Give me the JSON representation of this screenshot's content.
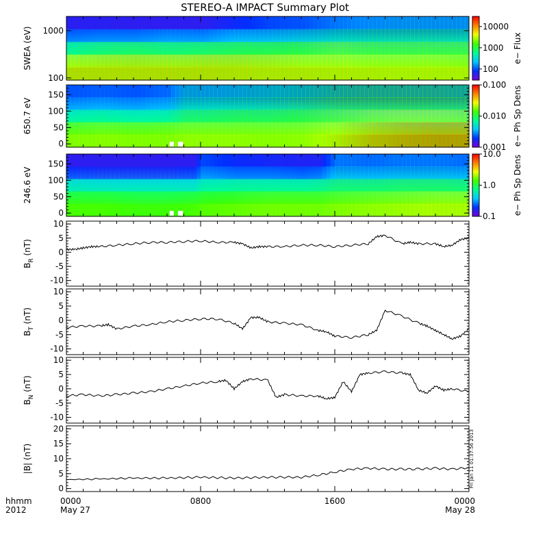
{
  "title": "STEREO-A IMPACT Summary Plot",
  "time_axis": {
    "corner_labels": [
      "hhmm",
      "2012"
    ],
    "ticks": [
      {
        "hours": 0,
        "label": "0000",
        "date": "May 27"
      },
      {
        "hours": 8,
        "label": "0800",
        "date": ""
      },
      {
        "hours": 16,
        "label": "1600",
        "date": ""
      },
      {
        "hours": 24,
        "label": "0000",
        "date": "May 28"
      }
    ],
    "range_hours": [
      0,
      24
    ]
  },
  "timestamp_stamp": "Fri Jan 11 01:37:56 2013",
  "chart_data": [
    {
      "type": "heatmap",
      "name": "swea",
      "ylabel": "SWEA (eV)",
      "yscale": "log",
      "ylim": [
        90,
        2000
      ],
      "yticks": [
        {
          "value": 1000,
          "label": "1000"
        },
        {
          "value": 100,
          "label": "100"
        }
      ],
      "colorbar": {
        "label": "e− Flux",
        "scale": "log",
        "range": [
          30,
          30000
        ],
        "ticks": [
          {
            "value": 10000,
            "label": "10000"
          },
          {
            "value": 1000,
            "label": "1000"
          },
          {
            "value": 100,
            "label": "100"
          }
        ]
      },
      "colorscale": [
        "#7a00d8",
        "#0030ff",
        "#00c8ff",
        "#00ff90",
        "#40ff00",
        "#f0ff00",
        "#ff8000",
        "#ff0000"
      ],
      "colorscale_fill": [
        0.22,
        0.42,
        0.62,
        0.82
      ],
      "layers": [
        {
          "hours": [
            0,
            2,
            4,
            6,
            8,
            10,
            12,
            14,
            16,
            18,
            20,
            22,
            24
          ],
          "fill": [
            0.06,
            0.06,
            0.05,
            0.05,
            0.05,
            0.12,
            0.18,
            0.2,
            0.26,
            0.3,
            0.32,
            0.32,
            0.32
          ]
        },
        {
          "hours": [
            0,
            2,
            4,
            6,
            8,
            10,
            12,
            14,
            16,
            18,
            20,
            22,
            24
          ],
          "fill": [
            0.2,
            0.22,
            0.22,
            0.25,
            0.24,
            0.3,
            0.32,
            0.36,
            0.42,
            0.45,
            0.46,
            0.46,
            0.45
          ]
        },
        {
          "hours": [
            0,
            2,
            4,
            6,
            8,
            10,
            12,
            14,
            16,
            18,
            20,
            22,
            24
          ],
          "fill": [
            0.45,
            0.5,
            0.52,
            0.5,
            0.52,
            0.55,
            0.56,
            0.58,
            0.62,
            0.6,
            0.6,
            0.6,
            0.6
          ]
        },
        {
          "hours": [
            0,
            2,
            4,
            6,
            8,
            10,
            12,
            14,
            16,
            18,
            20,
            22,
            24
          ],
          "fill": [
            0.72,
            0.74,
            0.75,
            0.74,
            0.75,
            0.75,
            0.74,
            0.72,
            0.72,
            0.7,
            0.7,
            0.7,
            0.68
          ]
        },
        {
          "hours": [
            0,
            2,
            4,
            6,
            8,
            10,
            12,
            14,
            16,
            18,
            20,
            22,
            24
          ],
          "fill": [
            0.78,
            0.78,
            0.78,
            0.78,
            0.78,
            0.77,
            0.76,
            0.76,
            0.75,
            0.75,
            0.74,
            0.74,
            0.74
          ]
        }
      ]
    },
    {
      "type": "heatmap",
      "name": "pad650",
      "ylabel": "650.7 eV",
      "yscale": "linear",
      "ylim": [
        -10,
        180
      ],
      "yticks": [
        {
          "value": 150,
          "label": "150"
        },
        {
          "value": 100,
          "label": "100"
        },
        {
          "value": 50,
          "label": "50"
        },
        {
          "value": 0,
          "label": "0"
        }
      ],
      "colorbar": {
        "label": "e− Ph Sp Dens",
        "scale": "log",
        "range": [
          0.001,
          0.1
        ],
        "ticks": [
          {
            "value": 0.1,
            "label": "0.100"
          },
          {
            "value": 0.01,
            "label": "0.010"
          },
          {
            "value": 0.001,
            "label": "0.001"
          }
        ]
      },
      "layers": [
        {
          "hours": [
            0,
            2,
            4,
            6,
            7,
            8,
            10,
            12,
            14,
            16,
            18,
            20,
            22,
            24
          ],
          "fill": [
            0.2,
            0.22,
            0.2,
            0.24,
            0.38,
            0.36,
            0.38,
            0.42,
            0.45,
            0.5,
            0.52,
            0.52,
            0.52,
            0.5
          ]
        },
        {
          "hours": [
            0,
            2,
            4,
            6,
            7,
            8,
            10,
            12,
            14,
            16,
            18,
            20,
            22,
            24
          ],
          "fill": [
            0.26,
            0.28,
            0.26,
            0.3,
            0.42,
            0.42,
            0.44,
            0.46,
            0.5,
            0.55,
            0.56,
            0.57,
            0.56,
            0.55
          ]
        },
        {
          "hours": [
            0,
            2,
            4,
            6,
            7,
            8,
            10,
            12,
            14,
            16,
            18,
            20,
            22,
            24
          ],
          "fill": [
            0.42,
            0.44,
            0.42,
            0.44,
            0.52,
            0.52,
            0.55,
            0.55,
            0.58,
            0.62,
            0.66,
            0.68,
            0.68,
            0.66
          ]
        },
        {
          "hours": [
            0,
            2,
            4,
            6,
            7,
            8,
            10,
            12,
            14,
            16,
            18,
            20,
            22,
            24
          ],
          "fill": [
            0.62,
            0.64,
            0.63,
            0.64,
            0.66,
            0.66,
            0.66,
            0.66,
            0.67,
            0.72,
            0.78,
            0.82,
            0.84,
            0.84
          ]
        },
        {
          "hours": [
            0,
            2,
            4,
            6,
            7,
            8,
            10,
            12,
            14,
            16,
            18,
            20,
            22,
            24
          ],
          "fill": [
            0.66,
            0.67,
            0.66,
            0.66,
            0.68,
            0.68,
            0.68,
            0.67,
            0.68,
            0.75,
            0.84,
            0.88,
            0.9,
            0.9
          ]
        }
      ],
      "data_gaps": [
        {
          "hours": [
            6.15,
            6.4
          ]
        },
        {
          "hours": [
            6.65,
            6.95
          ]
        }
      ]
    },
    {
      "type": "heatmap",
      "name": "pad246",
      "ylabel": "246.6 eV",
      "yscale": "linear",
      "ylim": [
        -10,
        180
      ],
      "yticks": [
        {
          "value": 150,
          "label": "150"
        },
        {
          "value": 100,
          "label": "100"
        },
        {
          "value": 50,
          "label": "50"
        },
        {
          "value": 0,
          "label": "0"
        }
      ],
      "colorbar": {
        "label": "e− Ph Sp Dens",
        "scale": "log",
        "range": [
          0.1,
          10
        ],
        "ticks": [
          {
            "value": 10,
            "label": "10.0"
          },
          {
            "value": 1,
            "label": "1.0"
          },
          {
            "value": 0.1,
            "label": "0.1"
          }
        ]
      },
      "layers": [
        {
          "hours": [
            0,
            2,
            4,
            6,
            7.5,
            8,
            10,
            12,
            14,
            15,
            16,
            18,
            20,
            22,
            24
          ],
          "fill": [
            0.05,
            0.05,
            0.05,
            0.05,
            0.05,
            0.18,
            0.12,
            0.1,
            0.08,
            0.08,
            0.26,
            0.24,
            0.26,
            0.26,
            0.24
          ]
        },
        {
          "hours": [
            0,
            2,
            4,
            6,
            7.5,
            8,
            10,
            12,
            14,
            15,
            16,
            18,
            20,
            22,
            24
          ],
          "fill": [
            0.12,
            0.1,
            0.1,
            0.1,
            0.12,
            0.24,
            0.2,
            0.2,
            0.18,
            0.2,
            0.32,
            0.3,
            0.32,
            0.32,
            0.3
          ]
        },
        {
          "hours": [
            0,
            2,
            4,
            6,
            7.5,
            8,
            10,
            12,
            14,
            15,
            16,
            18,
            20,
            22,
            24
          ],
          "fill": [
            0.38,
            0.36,
            0.36,
            0.36,
            0.36,
            0.42,
            0.44,
            0.44,
            0.44,
            0.46,
            0.5,
            0.5,
            0.52,
            0.52,
            0.5
          ]
        },
        {
          "hours": [
            0,
            2,
            4,
            6,
            7.5,
            8,
            10,
            12,
            14,
            15,
            16,
            18,
            20,
            22,
            24
          ],
          "fill": [
            0.54,
            0.54,
            0.52,
            0.52,
            0.54,
            0.56,
            0.58,
            0.6,
            0.6,
            0.6,
            0.62,
            0.64,
            0.66,
            0.68,
            0.68
          ]
        },
        {
          "hours": [
            0,
            2,
            4,
            6,
            7.5,
            8,
            10,
            12,
            14,
            15,
            16,
            18,
            20,
            22,
            24
          ],
          "fill": [
            0.58,
            0.58,
            0.56,
            0.56,
            0.58,
            0.6,
            0.62,
            0.64,
            0.64,
            0.64,
            0.66,
            0.68,
            0.7,
            0.72,
            0.72
          ]
        }
      ],
      "data_gaps": [
        {
          "hours": [
            6.15,
            6.4
          ]
        },
        {
          "hours": [
            6.65,
            6.95
          ]
        }
      ]
    },
    {
      "type": "line",
      "name": "br",
      "ylabel": "B",
      "ylabel_sub": "R",
      "ylabel_unit": "(nT)",
      "ylim": [
        -12,
        11
      ],
      "yticks": [
        10,
        5,
        0,
        -5,
        -10
      ],
      "x": [
        0,
        0.5,
        1,
        1.5,
        2,
        3,
        4,
        5,
        6,
        7,
        8,
        9,
        10,
        10.5,
        11,
        11.5,
        12,
        13,
        14,
        15,
        16,
        17,
        18,
        18.5,
        19,
        20,
        20.5,
        21,
        22,
        22.5,
        23,
        23.5,
        24
      ],
      "y": [
        1,
        1,
        1.5,
        2,
        2,
        2.5,
        3,
        3.5,
        3.5,
        3.8,
        4,
        3.5,
        3.5,
        3,
        1.5,
        2,
        2,
        2,
        2.5,
        2.5,
        2,
        2.5,
        3,
        5.5,
        6,
        3,
        3.5,
        3,
        3,
        2,
        2.5,
        4.5,
        5
      ]
    },
    {
      "type": "line",
      "name": "bt",
      "ylabel": "B",
      "ylabel_sub": "T",
      "ylabel_unit": "(nT)",
      "ylim": [
        -12,
        11
      ],
      "yticks": [
        10,
        5,
        0,
        -5,
        -10
      ],
      "x": [
        0,
        1,
        2,
        2.5,
        3,
        4,
        5,
        6,
        7,
        8,
        9,
        10,
        10.5,
        11,
        11.5,
        12,
        13,
        14,
        15,
        15.5,
        16,
        17,
        18,
        18.5,
        19,
        20,
        21,
        21.5,
        22,
        22.5,
        23,
        23.5,
        24
      ],
      "y": [
        -2.5,
        -2,
        -2,
        -1.5,
        -3,
        -2,
        -1.5,
        -0.5,
        0,
        0.5,
        0.5,
        -1,
        -3,
        1,
        1,
        -0.5,
        -1,
        -1.5,
        -3.5,
        -4,
        -5.5,
        -6,
        -5,
        -3.5,
        3.5,
        1.5,
        -1,
        -2,
        -3.5,
        -5,
        -6.5,
        -5.5,
        -3
      ]
    },
    {
      "type": "line",
      "name": "bn",
      "ylabel": "B",
      "ylabel_sub": "N",
      "ylabel_unit": "(nT)",
      "ylim": [
        -12,
        11
      ],
      "yticks": [
        10,
        5,
        0,
        -5,
        -10
      ],
      "x": [
        0,
        1,
        2,
        3,
        4,
        5,
        6,
        7,
        8,
        9,
        9.5,
        10,
        10.5,
        11,
        12,
        12.5,
        13,
        14,
        15,
        15.5,
        16,
        16.5,
        17,
        17.5,
        18,
        19,
        20,
        20.5,
        21,
        21.5,
        22,
        22.5,
        23,
        24
      ],
      "y": [
        -2.5,
        -2,
        -2.5,
        -2,
        -1.5,
        -1,
        0,
        1,
        2,
        2.5,
        3,
        0,
        2.5,
        3.5,
        3,
        -3,
        -2,
        -2.5,
        -2.5,
        -3.5,
        -3,
        2.5,
        -1,
        5,
        5.5,
        6,
        5.5,
        5,
        -0.5,
        -1.5,
        1,
        -0.5,
        0,
        -1
      ]
    },
    {
      "type": "line",
      "name": "bmag",
      "ylabel": "|B| (nT)",
      "ylim": [
        -1,
        21
      ],
      "yticks": [
        20,
        15,
        10,
        5,
        0
      ],
      "x": [
        0,
        2,
        4,
        6,
        8,
        10,
        12,
        14,
        15,
        16,
        17,
        18,
        19,
        20,
        21,
        22,
        23,
        24
      ],
      "y": [
        3,
        3.2,
        3.5,
        3.5,
        3.8,
        3.5,
        3.8,
        3.8,
        4.5,
        5.5,
        6.5,
        6.8,
        6.5,
        6.5,
        6.5,
        6.8,
        6.5,
        7
      ]
    }
  ]
}
